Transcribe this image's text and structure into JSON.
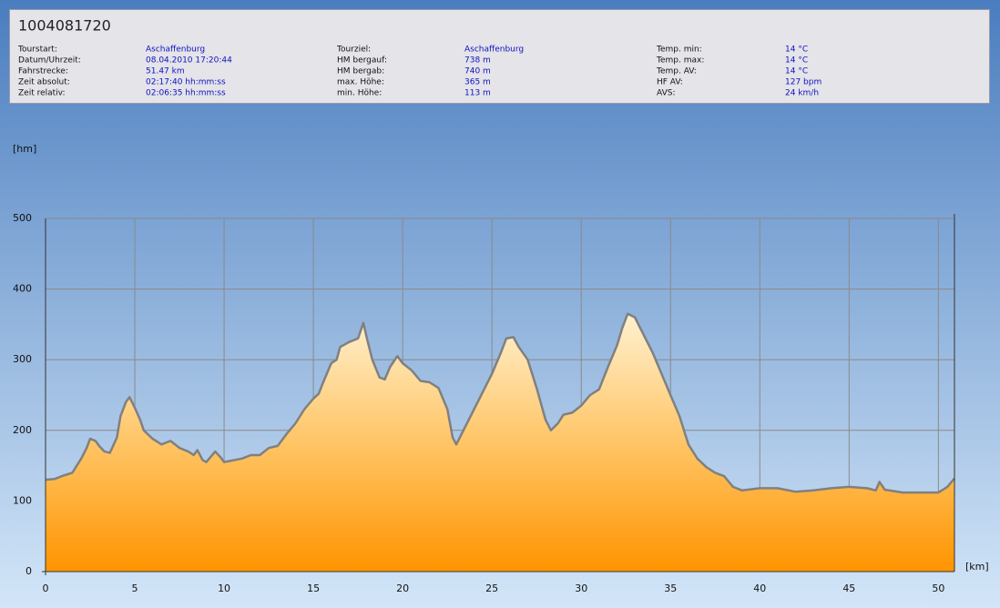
{
  "header": {
    "title": "1004081720",
    "columns": [
      [
        {
          "label": "Tourstart:",
          "value": "Aschaffenburg"
        },
        {
          "label": "Datum/Uhrzeit:",
          "value": "08.04.2010 17:20:44"
        },
        {
          "label": "Fahrstrecke:",
          "value": "51.47 km"
        },
        {
          "label": "Zeit absolut:",
          "value": "02:17:40 hh:mm:ss"
        },
        {
          "label": "Zeit relativ:",
          "value": "02:06:35 hh:mm:ss"
        }
      ],
      [
        {
          "label": "Tourziel:",
          "value": "Aschaffenburg"
        },
        {
          "label": "HM bergauf:",
          "value": "738 m"
        },
        {
          "label": "HM bergab:",
          "value": "740 m"
        },
        {
          "label": "max. Höhe:",
          "value": "365 m"
        },
        {
          "label": "min. Höhe:",
          "value": "113 m"
        }
      ],
      [
        {
          "label": "Temp. min:",
          "value": "14 °C"
        },
        {
          "label": "Temp. max:",
          "value": "14 °C"
        },
        {
          "label": "Temp. AV:",
          "value": "14 °C"
        },
        {
          "label": "HF AV:",
          "value": "127 bpm"
        },
        {
          "label": "AVS:",
          "value": "24 km/h"
        }
      ]
    ]
  },
  "chart_data": {
    "type": "area",
    "y_label": "[hm]",
    "x_label": "[km]",
    "xlim": [
      0,
      50.9
    ],
    "ylim": [
      0,
      500
    ],
    "xticks": [
      0,
      5,
      10,
      15,
      20,
      25,
      30,
      35,
      40,
      45,
      50
    ],
    "yticks": [
      0,
      100,
      200,
      300,
      400,
      500
    ],
    "grid": true,
    "series": [
      {
        "color": "#808080",
        "x": [
          0,
          0.5,
          1,
          1.5,
          2,
          2.3,
          2.5,
          2.8,
          3,
          3.3,
          3.6,
          4,
          4.2,
          4.5,
          4.7,
          5,
          5.3,
          5.5,
          6,
          6.5,
          7,
          7.5,
          8,
          8.3,
          8.5,
          8.8,
          9,
          9.5,
          9.8,
          10,
          11,
          11.5,
          12,
          12.5,
          13,
          13.5,
          14,
          14.5,
          15,
          15.3,
          15.5,
          16,
          16.3,
          16.5,
          17,
          17.5,
          17.8,
          18,
          18.3,
          18.7,
          19,
          19.3,
          19.7,
          20,
          20.5,
          21,
          21.5,
          22,
          22.5,
          22.8,
          23,
          23.5,
          24,
          24.5,
          25,
          25.5,
          25.8,
          26.2,
          26.5,
          27,
          27.5,
          28,
          28.3,
          28.7,
          29,
          29.5,
          30,
          30.5,
          31,
          31.5,
          32,
          32.3,
          32.6,
          33,
          33.5,
          34,
          34.5,
          35,
          35.5,
          36,
          36.5,
          37,
          37.5,
          38,
          38.5,
          39,
          40,
          41,
          42,
          43,
          44,
          45,
          46,
          46.5,
          46.7,
          47,
          48,
          49,
          50,
          50.5,
          50.9
        ],
        "values": [
          130,
          131,
          136,
          140,
          160,
          175,
          188,
          185,
          178,
          170,
          168,
          190,
          220,
          240,
          247,
          232,
          215,
          200,
          188,
          180,
          185,
          175,
          170,
          165,
          172,
          158,
          155,
          170,
          162,
          155,
          160,
          165,
          165,
          175,
          178,
          195,
          210,
          230,
          245,
          252,
          265,
          295,
          300,
          318,
          325,
          330,
          352,
          330,
          300,
          275,
          272,
          290,
          305,
          295,
          285,
          270,
          268,
          260,
          230,
          190,
          180,
          205,
          230,
          255,
          280,
          310,
          330,
          332,
          318,
          300,
          260,
          215,
          200,
          210,
          222,
          225,
          235,
          250,
          258,
          290,
          320,
          345,
          365,
          360,
          335,
          310,
          280,
          250,
          220,
          180,
          160,
          148,
          140,
          135,
          120,
          115,
          118,
          118,
          113,
          115,
          118,
          120,
          118,
          115,
          127,
          116,
          112,
          112,
          112,
          120,
          132
        ]
      }
    ]
  }
}
